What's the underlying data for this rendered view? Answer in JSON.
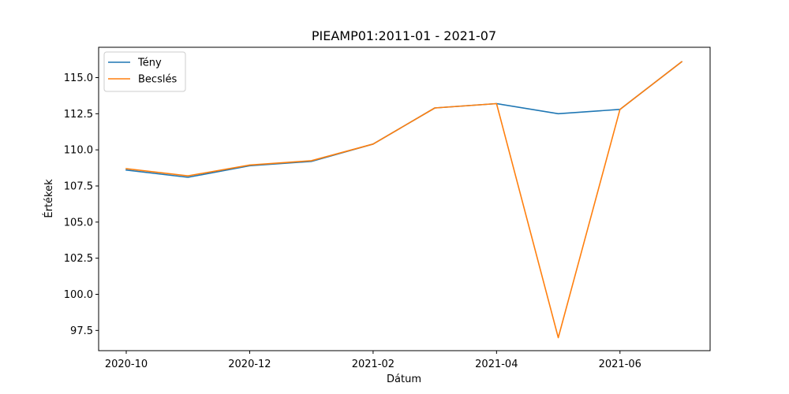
{
  "chart_data": {
    "type": "line",
    "title": "PIEAMP01:2011-01 - 2021-07",
    "xlabel": "Dátum",
    "ylabel": "Értékek",
    "x": [
      "2020-10",
      "2020-11",
      "2020-12",
      "2021-01",
      "2021-02",
      "2021-03",
      "2021-04",
      "2021-05",
      "2021-06",
      "2021-07"
    ],
    "x_tick_labels": [
      "2020-10",
      "2020-12",
      "2021-02",
      "2021-04",
      "2021-06"
    ],
    "y_tick_labels": [
      "97.5",
      "100.0",
      "102.5",
      "105.0",
      "107.5",
      "110.0",
      "112.5",
      "115.0"
    ],
    "ylim": [
      96.1,
      117.1
    ],
    "legend_position": "upper-left",
    "series": [
      {
        "name": "Tény",
        "color": "#1f77b4",
        "values": [
          108.6,
          108.1,
          108.9,
          109.2,
          110.4,
          112.9,
          113.2,
          112.5,
          112.8,
          116.1
        ]
      },
      {
        "name": "Becslés",
        "color": "#ff7f0e",
        "values": [
          108.7,
          108.2,
          108.95,
          109.25,
          110.4,
          112.9,
          113.2,
          97.0,
          112.8,
          116.1
        ]
      }
    ]
  }
}
